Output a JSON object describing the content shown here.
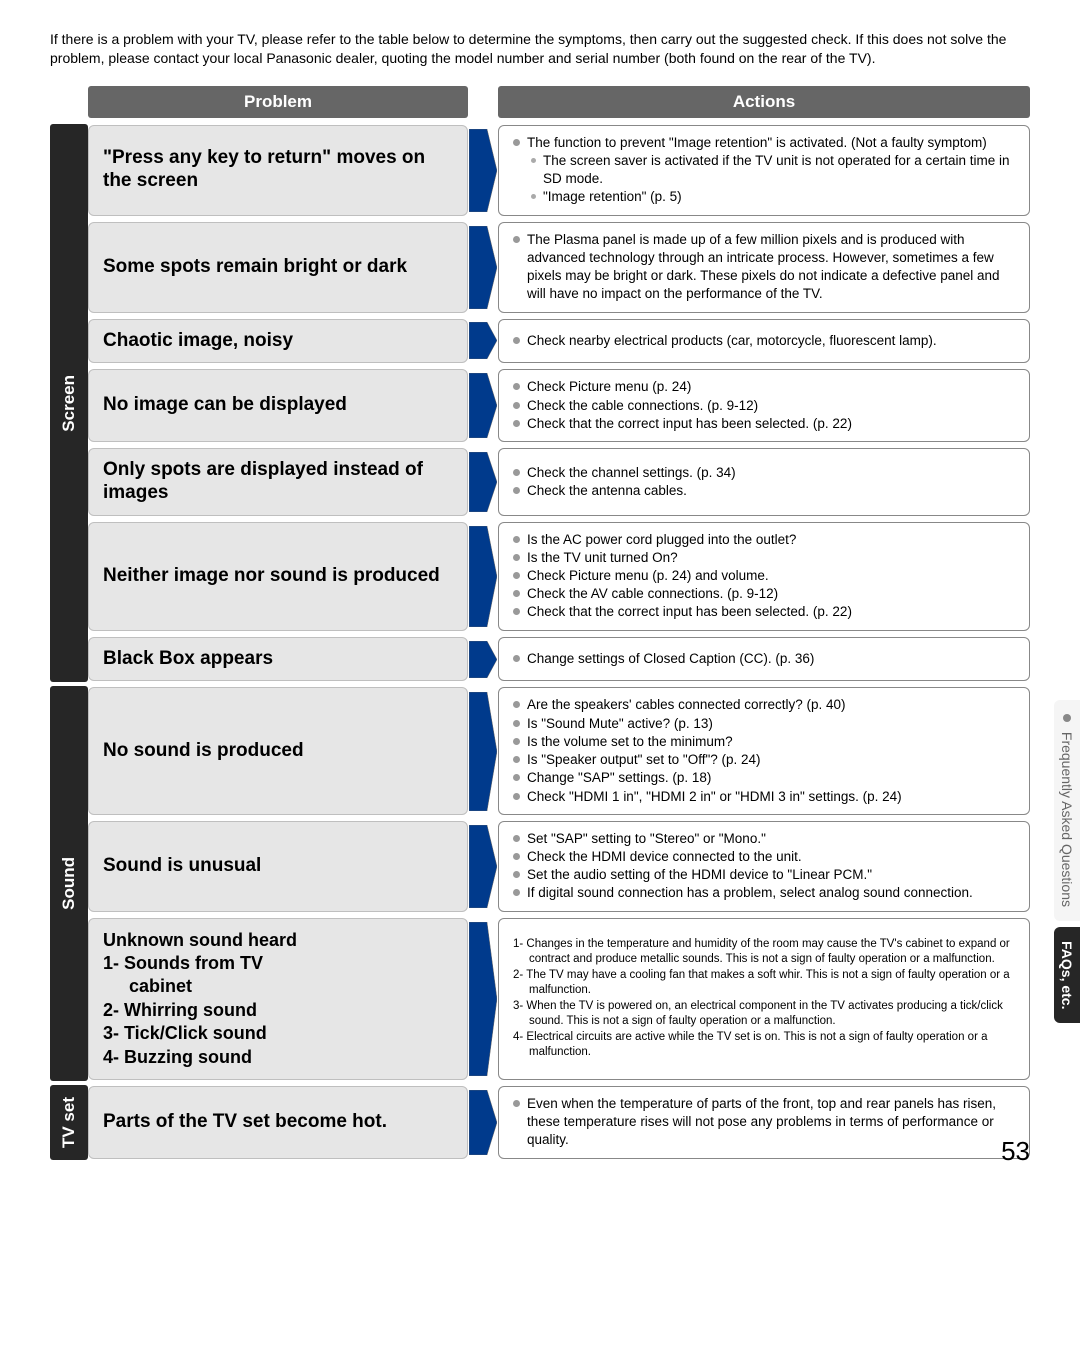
{
  "intro": "If there is a problem with your TV, please refer to the table below to determine the symptoms, then carry out the suggested check. If this does not solve the problem, please contact your local Panasonic dealer, quoting the model number and serial number (both found on the rear of the TV).",
  "headers": {
    "problem": "Problem",
    "actions": "Actions"
  },
  "colors": {
    "header_bg": "#666666",
    "header_fg": "#ffffff",
    "side_bg": "#262626",
    "side_fg": "#ffffff",
    "problem_bg": "#e6e6e6",
    "action_border": "#888888",
    "bullet": "#999999",
    "arrow_fill": "#003a8c",
    "arrow_stroke": "#666666"
  },
  "sections": [
    {
      "label": "Screen",
      "rows": [
        {
          "problem": "\"Press any key to return\" moves on the screen",
          "actions": [
            {
              "t": "b",
              "text": "The function to prevent \"Image retention\" is activated. (Not a faulty symptom)"
            },
            {
              "t": "s",
              "text": "The screen saver is activated if the TV unit is not operated for a certain time in SD mode."
            },
            {
              "t": "s",
              "text": "\"Image retention\" (p. 5)"
            }
          ]
        },
        {
          "problem": "Some spots remain bright or dark",
          "actions": [
            {
              "t": "b",
              "text": "The Plasma panel is made up of a few million pixels and is produced with advanced technology through an intricate process.  However, sometimes a few pixels may be bright or dark.  These pixels do not indicate a defective panel and will have no impact on the performance of the TV."
            }
          ]
        },
        {
          "problem": "Chaotic image, noisy",
          "actions": [
            {
              "t": "b",
              "text": "Check nearby electrical products (car, motorcycle, fluorescent lamp)."
            }
          ]
        },
        {
          "problem": "No image can be displayed",
          "actions": [
            {
              "t": "b",
              "text": "Check Picture menu (p. 24)"
            },
            {
              "t": "b",
              "text": "Check the cable connections. (p. 9-12)"
            },
            {
              "t": "b",
              "text": "Check that the correct input has been selected. (p. 22)"
            }
          ]
        },
        {
          "problem": "Only spots are displayed instead of images",
          "actions": [
            {
              "t": "b",
              "text": "Check the channel settings. (p. 34)"
            },
            {
              "t": "b",
              "text": "Check the antenna cables."
            }
          ]
        },
        {
          "problem": "Neither image nor sound is produced",
          "actions": [
            {
              "t": "b",
              "text": "Is the AC power cord plugged into the outlet?"
            },
            {
              "t": "b",
              "text": "Is the TV unit turned On?"
            },
            {
              "t": "b",
              "text": "Check Picture menu (p. 24) and volume."
            },
            {
              "t": "b",
              "text": "Check the AV cable connections. (p. 9-12)"
            },
            {
              "t": "b",
              "text": "Check that the correct input has been selected. (p. 22)"
            }
          ]
        },
        {
          "problem": "Black Box appears",
          "actions": [
            {
              "t": "b",
              "text": "Change settings of Closed Caption (CC). (p. 36)"
            }
          ]
        }
      ]
    },
    {
      "label": "Sound",
      "rows": [
        {
          "problem": "No sound is produced",
          "actions": [
            {
              "t": "b",
              "text": "Are the speakers' cables connected correctly? (p. 40)"
            },
            {
              "t": "b",
              "text": "Is \"Sound Mute\" active? (p. 13)"
            },
            {
              "t": "b",
              "text": "Is the volume set to the minimum?"
            },
            {
              "t": "b",
              "text": "Is \"Speaker output\" set to \"Off\"? (p. 24)"
            },
            {
              "t": "b",
              "text": "Change \"SAP\" settings. (p. 18)"
            },
            {
              "t": "b",
              "text": "Check \"HDMI 1 in\", \"HDMI 2 in\" or \"HDMI 3 in\" settings. (p. 24)"
            }
          ]
        },
        {
          "problem": "Sound is unusual",
          "actions": [
            {
              "t": "b",
              "text": "Set \"SAP\" setting to \"Stereo\" or \"Mono.\""
            },
            {
              "t": "b",
              "text": "Check the HDMI device connected to the unit."
            },
            {
              "t": "b",
              "text": "Set the audio setting of the HDMI device to \"Linear PCM.\""
            },
            {
              "t": "b",
              "text": "If digital sound connection has a problem, select analog sound connection."
            }
          ]
        },
        {
          "problem": "Unknown sound heard\n1- Sounds from TV cabinet\n2- Whirring sound\n3- Tick/Click sound\n4- Buzzing sound",
          "numbered": true,
          "actions_raw": [
            "1- Changes in the temperature and humidity of the room may cause the TV's cabinet to expand or contract and produce metallic sounds. This is not a sign of faulty operation or a malfunction.",
            "2- The TV may have a cooling fan that makes a soft whir. This is not a sign of faulty operation or a malfunction.",
            "3- When the TV is powered on, an electrical component in the TV activates producing a tick/click sound. This is not a sign of faulty operation or a malfunction.",
            "4- Electrical circuits are active while the TV set is on. This is not a sign of faulty operation or a malfunction."
          ]
        }
      ]
    },
    {
      "label": "TV set",
      "rows": [
        {
          "problem": "Parts of the TV set become hot.",
          "actions": [
            {
              "t": "b",
              "text": "Even when the temperature of parts of the front, top and rear panels has risen, these temperature rises will not pose any problems in terms of performance or quality."
            }
          ]
        }
      ]
    }
  ],
  "tabs": {
    "faq": "Frequently Asked Questions",
    "dark": "FAQs, etc."
  },
  "page": "53"
}
